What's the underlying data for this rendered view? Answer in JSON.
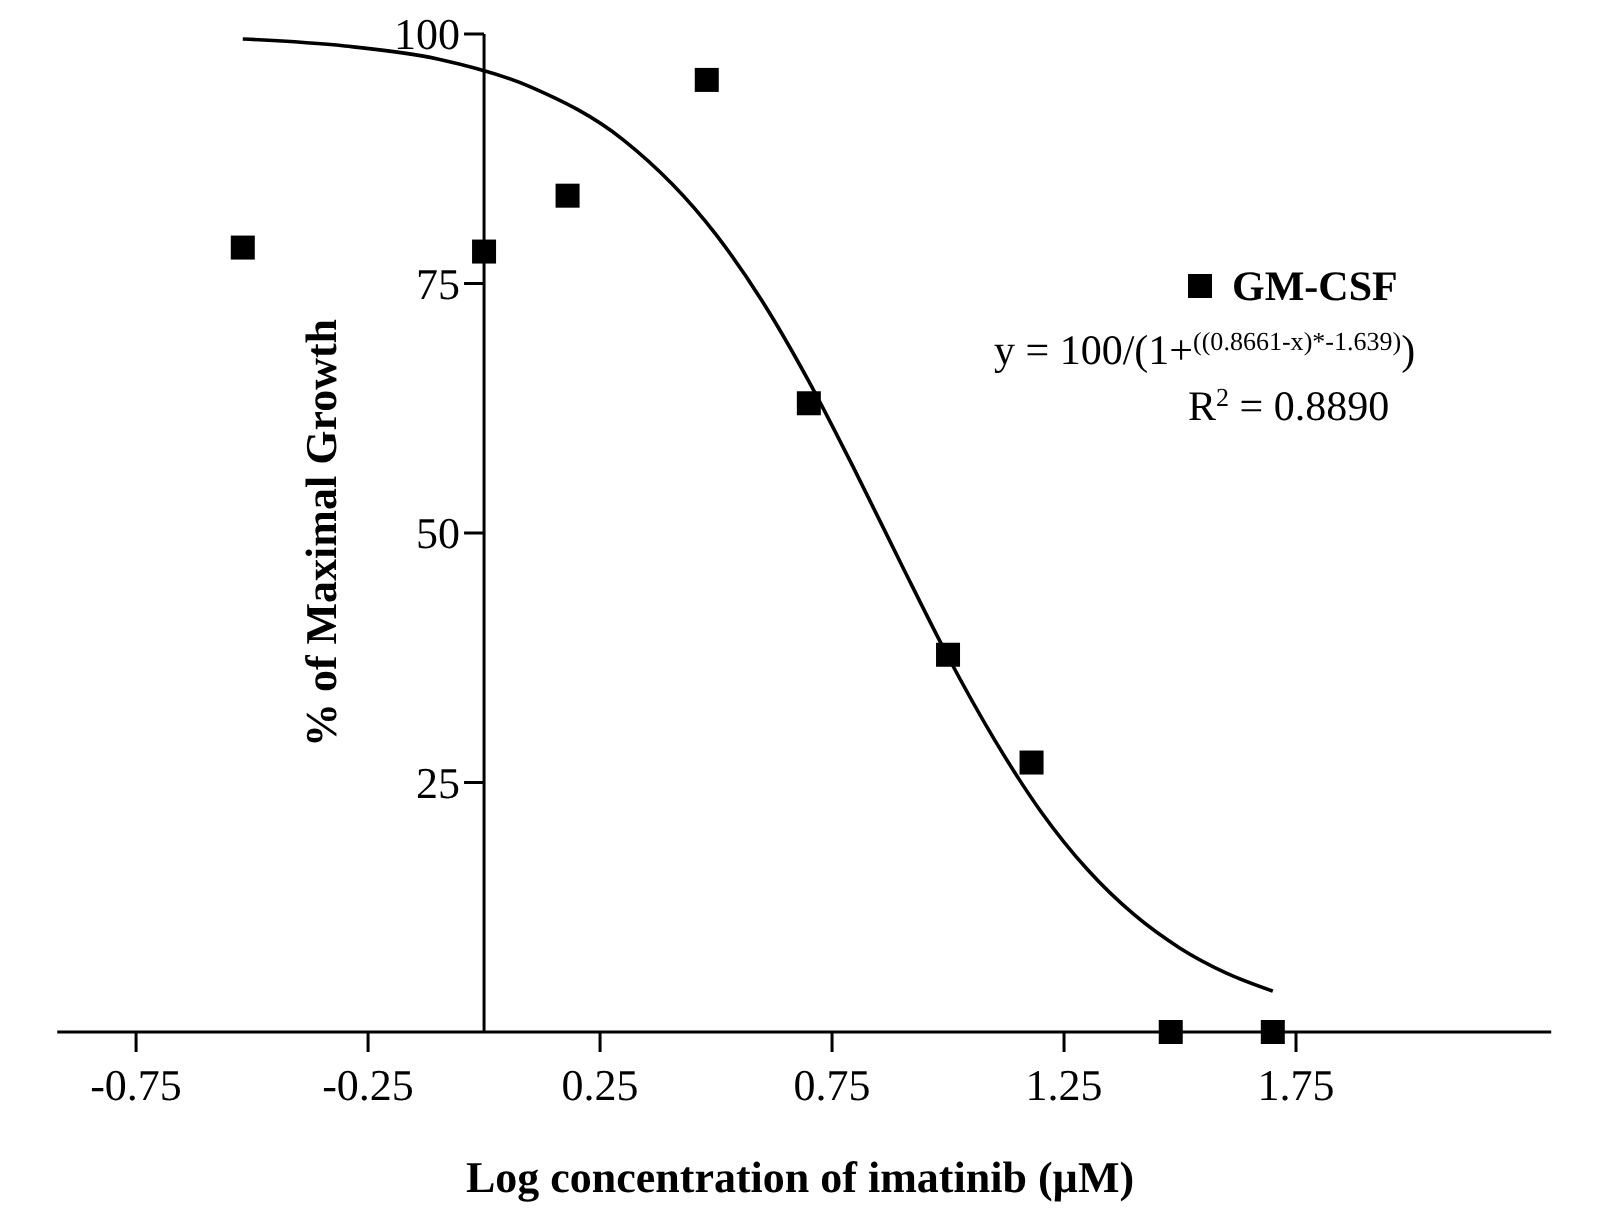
{
  "chart_data": {
    "type": "scatter",
    "xlabel": "Log concentration of imatinib (µM)",
    "ylabel": "% of Maximal Growth",
    "xlim": [
      -0.92,
      2.3
    ],
    "xticks": [
      -0.75,
      -0.25,
      0.25,
      0.75,
      1.25,
      1.75
    ],
    "ylim": [
      0,
      100
    ],
    "yticks": [
      25,
      50,
      75,
      100
    ],
    "grid": false,
    "legend": "top right",
    "series": [
      {
        "name": "GM-CSF",
        "type": "scatter",
        "marker": "square",
        "color": "#000000",
        "x": [
          -0.52,
          0,
          0.18,
          0.48,
          0.7,
          1.0,
          1.18,
          1.48,
          1.7
        ],
        "values": [
          78.6,
          78.2,
          83.8,
          95.4,
          63,
          37.8,
          27,
          0,
          0
        ]
      },
      {
        "type": "line",
        "marker": "none",
        "line_style": "solid",
        "color": "#000000",
        "x": [
          -0.52,
          -0.3,
          -0.1,
          0.1,
          0.3,
          0.5,
          0.6,
          0.7,
          0.8,
          0.9,
          1.0,
          1.1,
          1.2,
          1.3,
          1.4,
          1.5,
          1.6,
          1.7
        ],
        "values": [
          99.5,
          98.8,
          97.5,
          94.7,
          89.4,
          79.9,
          73.2,
          65.2,
          56.2,
          46.8,
          37.6,
          29.3,
          22.1,
          16.3,
          11.8,
          8.4,
          5.9,
          4.1
        ]
      }
    ],
    "annotations": [
      "y = 100/(1+$^{((0.8661-x)*-1.639)}$)",
      "R$^{2}$ = 0.8890"
    ]
  }
}
